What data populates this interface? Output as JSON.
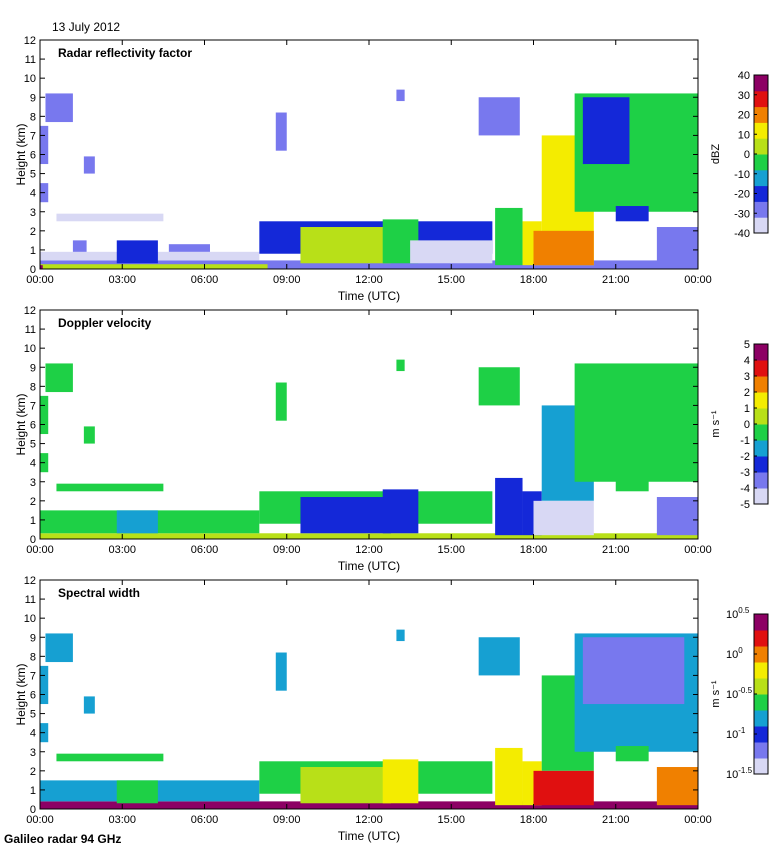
{
  "header": {
    "date": "13 July 2012"
  },
  "footer": {
    "instrument": "Galileo radar 94 GHz"
  },
  "colors": {
    "scale": [
      "#d8d8f4",
      "#7878ee",
      "#1428d8",
      "#16a0d2",
      "#1ed046",
      "#b8e018",
      "#f4ec00",
      "#f08000",
      "#e01010",
      "#8c0064"
    ]
  },
  "chart_data": [
    {
      "type": "heatmap",
      "title": "Radar reflectivity factor",
      "xlabel": "Time (UTC)",
      "ylabel": "Height (km)",
      "xticks": [
        "00:00",
        "03:00",
        "06:00",
        "09:00",
        "12:00",
        "15:00",
        "18:00",
        "21:00",
        "00:00"
      ],
      "xlim_hours": [
        0,
        24
      ],
      "yticks": [
        "0",
        "1",
        "2",
        "3",
        "4",
        "5",
        "6",
        "7",
        "8",
        "9",
        "10",
        "11",
        "12"
      ],
      "ylim_km": [
        0,
        12
      ],
      "colorbar": {
        "label": "dBZ",
        "ticks": [
          "40",
          "30",
          "20",
          "10",
          "0",
          "-10",
          "-20",
          "-30",
          "-40"
        ],
        "range": [
          -40,
          40
        ]
      },
      "regions": [
        {
          "t": [
            0.0,
            24.0
          ],
          "h": [
            0.0,
            0.45
          ],
          "v": -28
        },
        {
          "t": [
            0.0,
            8.0
          ],
          "h": [
            0.45,
            0.9
          ],
          "v": -35
        },
        {
          "t": [
            0.0,
            8.3
          ],
          "h": [
            0.0,
            0.25
          ],
          "v": 5
        },
        {
          "t": [
            0.0,
            0.1
          ],
          "h": [
            0.0,
            0.2
          ],
          "v": 35
        },
        {
          "t": [
            0.2,
            1.2
          ],
          "h": [
            7.7,
            9.2
          ],
          "v": -25
        },
        {
          "t": [
            0.0,
            0.3
          ],
          "h": [
            5.5,
            7.5
          ],
          "v": -25
        },
        {
          "t": [
            0.0,
            0.3
          ],
          "h": [
            3.5,
            4.5
          ],
          "v": -25
        },
        {
          "t": [
            1.6,
            2.0
          ],
          "h": [
            5.0,
            5.9
          ],
          "v": -25
        },
        {
          "t": [
            0.6,
            4.5
          ],
          "h": [
            2.5,
            2.9
          ],
          "v": -38
        },
        {
          "t": [
            1.2,
            1.7
          ],
          "h": [
            0.9,
            1.5
          ],
          "v": -25
        },
        {
          "t": [
            2.8,
            4.3
          ],
          "h": [
            0.3,
            1.5
          ],
          "v": -24
        },
        {
          "t": [
            4.7,
            6.2
          ],
          "h": [
            0.9,
            1.3
          ],
          "v": -25
        },
        {
          "t": [
            8.6,
            9.0
          ],
          "h": [
            6.2,
            8.2
          ],
          "v": -25
        },
        {
          "t": [
            8.0,
            16.5
          ],
          "h": [
            0.8,
            2.5
          ],
          "v": -24
        },
        {
          "t": [
            9.5,
            12.8
          ],
          "h": [
            0.3,
            2.2
          ],
          "v": 5
        },
        {
          "t": [
            12.5,
            13.8
          ],
          "h": [
            0.3,
            2.6
          ],
          "v": -5
        },
        {
          "t": [
            13.5,
            16.5
          ],
          "h": [
            0.3,
            1.5
          ],
          "v": -36
        },
        {
          "t": [
            13.0,
            13.3
          ],
          "h": [
            8.8,
            9.4
          ],
          "v": -25
        },
        {
          "t": [
            16.0,
            17.5
          ],
          "h": [
            7.0,
            9.0
          ],
          "v": -25
        },
        {
          "t": [
            16.6,
            17.6
          ],
          "h": [
            0.2,
            3.2
          ],
          "v": -2
        },
        {
          "t": [
            17.6,
            18.3
          ],
          "h": [
            0.2,
            2.5
          ],
          "v": 12
        },
        {
          "t": [
            18.3,
            20.2
          ],
          "h": [
            0.2,
            7.0
          ],
          "v": 8
        },
        {
          "t": [
            18.0,
            20.2
          ],
          "h": [
            0.2,
            2.0
          ],
          "v": 22
        },
        {
          "t": [
            19.5,
            24.0
          ],
          "h": [
            3.0,
            9.2
          ],
          "v": -7
        },
        {
          "t": [
            19.8,
            21.5
          ],
          "h": [
            5.5,
            9.0
          ],
          "v": -20
        },
        {
          "t": [
            21.0,
            22.2
          ],
          "h": [
            2.5,
            3.3
          ],
          "v": -22
        },
        {
          "t": [
            22.5,
            24.0
          ],
          "h": [
            0.2,
            2.2
          ],
          "v": -26
        }
      ]
    },
    {
      "type": "heatmap",
      "title": "Doppler velocity",
      "xlabel": "Time (UTC)",
      "ylabel": "Height (km)",
      "xticks": [
        "00:00",
        "03:00",
        "06:00",
        "09:00",
        "12:00",
        "15:00",
        "18:00",
        "21:00",
        "00:00"
      ],
      "xlim_hours": [
        0,
        24
      ],
      "yticks": [
        "0",
        "1",
        "2",
        "3",
        "4",
        "5",
        "6",
        "7",
        "8",
        "9",
        "10",
        "11",
        "12"
      ],
      "ylim_km": [
        0,
        12
      ],
      "colorbar": {
        "label": "m s⁻¹",
        "ticks": [
          "5",
          "4",
          "3",
          "2",
          "1",
          "0",
          "-1",
          "-2",
          "-3",
          "-4",
          "-5"
        ],
        "range": [
          -5,
          5
        ]
      },
      "regions": [
        {
          "t": [
            0.0,
            24.0
          ],
          "h": [
            0.0,
            0.3
          ],
          "v": 0.5
        },
        {
          "t": [
            0.0,
            8.0
          ],
          "h": [
            0.3,
            1.5
          ],
          "v": -1
        },
        {
          "t": [
            0.2,
            1.2
          ],
          "h": [
            7.7,
            9.2
          ],
          "v": -1
        },
        {
          "t": [
            0.0,
            0.3
          ],
          "h": [
            5.5,
            7.5
          ],
          "v": -1
        },
        {
          "t": [
            0.0,
            0.3
          ],
          "h": [
            3.5,
            4.5
          ],
          "v": -1
        },
        {
          "t": [
            1.6,
            2.0
          ],
          "h": [
            5.0,
            5.9
          ],
          "v": -1
        },
        {
          "t": [
            0.6,
            4.5
          ],
          "h": [
            2.5,
            2.9
          ],
          "v": -1
        },
        {
          "t": [
            2.8,
            4.3
          ],
          "h": [
            0.3,
            1.5
          ],
          "v": -2
        },
        {
          "t": [
            8.6,
            9.0
          ],
          "h": [
            6.2,
            8.2
          ],
          "v": -1
        },
        {
          "t": [
            8.0,
            16.5
          ],
          "h": [
            0.8,
            2.5
          ],
          "v": -1
        },
        {
          "t": [
            9.5,
            12.8
          ],
          "h": [
            0.3,
            2.2
          ],
          "v": -2.5
        },
        {
          "t": [
            12.5,
            13.8
          ],
          "h": [
            0.3,
            2.6
          ],
          "v": -3
        },
        {
          "t": [
            13.0,
            13.3
          ],
          "h": [
            8.8,
            9.4
          ],
          "v": -1
        },
        {
          "t": [
            16.0,
            17.5
          ],
          "h": [
            7.0,
            9.0
          ],
          "v": -1
        },
        {
          "t": [
            16.6,
            17.6
          ],
          "h": [
            0.2,
            3.2
          ],
          "v": -2.5
        },
        {
          "t": [
            17.6,
            18.3
          ],
          "h": [
            0.2,
            2.5
          ],
          "v": -3
        },
        {
          "t": [
            18.3,
            20.2
          ],
          "h": [
            2.0,
            7.0
          ],
          "v": -1.5
        },
        {
          "t": [
            18.0,
            20.2
          ],
          "h": [
            0.2,
            2.0
          ],
          "v": -4.5
        },
        {
          "t": [
            19.5,
            24.0
          ],
          "h": [
            3.0,
            9.2
          ],
          "v": -1
        },
        {
          "t": [
            21.0,
            22.2
          ],
          "h": [
            2.5,
            3.3
          ],
          "v": -1
        },
        {
          "t": [
            22.5,
            24.0
          ],
          "h": [
            0.2,
            2.2
          ],
          "v": -3.5
        }
      ]
    },
    {
      "type": "heatmap",
      "title": "Spectral width",
      "xlabel": "Time (UTC)",
      "ylabel": "Height (km)",
      "xticks": [
        "00:00",
        "03:00",
        "06:00",
        "09:00",
        "12:00",
        "15:00",
        "18:00",
        "21:00",
        "00:00"
      ],
      "xlim_hours": [
        0,
        24
      ],
      "yticks": [
        "0",
        "1",
        "2",
        "3",
        "4",
        "5",
        "6",
        "7",
        "8",
        "9",
        "10",
        "11",
        "12"
      ],
      "ylim_km": [
        0,
        12
      ],
      "colorbar": {
        "label": "m s⁻¹",
        "ticks": [
          "10^0.5",
          "10^0",
          "10^-0.5",
          "10^-1",
          "10^-1.5"
        ],
        "range": [
          -1.5,
          0.5
        ]
      },
      "regions": [
        {
          "t": [
            0.0,
            24.0
          ],
          "h": [
            0.0,
            0.4
          ],
          "v": 0.45
        },
        {
          "t": [
            0.0,
            8.0
          ],
          "h": [
            0.4,
            1.5
          ],
          "v": -0.8
        },
        {
          "t": [
            0.2,
            1.2
          ],
          "h": [
            7.7,
            9.2
          ],
          "v": -0.9
        },
        {
          "t": [
            0.0,
            0.3
          ],
          "h": [
            5.5,
            7.5
          ],
          "v": -0.9
        },
        {
          "t": [
            0.0,
            0.3
          ],
          "h": [
            3.5,
            4.5
          ],
          "v": -0.9
        },
        {
          "t": [
            1.6,
            2.0
          ],
          "h": [
            5.0,
            5.9
          ],
          "v": -0.8
        },
        {
          "t": [
            0.6,
            4.5
          ],
          "h": [
            2.5,
            2.9
          ],
          "v": -0.7
        },
        {
          "t": [
            2.8,
            4.3
          ],
          "h": [
            0.3,
            1.5
          ],
          "v": -0.6
        },
        {
          "t": [
            8.6,
            9.0
          ],
          "h": [
            6.2,
            8.2
          ],
          "v": -0.9
        },
        {
          "t": [
            8.0,
            16.5
          ],
          "h": [
            0.8,
            2.5
          ],
          "v": -0.55
        },
        {
          "t": [
            9.5,
            12.8
          ],
          "h": [
            0.3,
            2.2
          ],
          "v": -0.4
        },
        {
          "t": [
            12.5,
            13.8
          ],
          "h": [
            0.3,
            2.6
          ],
          "v": -0.3
        },
        {
          "t": [
            13.0,
            13.3
          ],
          "h": [
            8.8,
            9.4
          ],
          "v": -0.8
        },
        {
          "t": [
            16.0,
            17.5
          ],
          "h": [
            7.0,
            9.0
          ],
          "v": -0.8
        },
        {
          "t": [
            16.6,
            17.6
          ],
          "h": [
            0.2,
            3.2
          ],
          "v": -0.3
        },
        {
          "t": [
            17.6,
            18.3
          ],
          "h": [
            0.2,
            2.5
          ],
          "v": -0.2
        },
        {
          "t": [
            18.3,
            20.2
          ],
          "h": [
            2.0,
            7.0
          ],
          "v": -0.55
        },
        {
          "t": [
            18.0,
            20.2
          ],
          "h": [
            0.2,
            2.0
          ],
          "v": 0.1
        },
        {
          "t": [
            19.5,
            24.0
          ],
          "h": [
            3.0,
            9.2
          ],
          "v": -0.75
        },
        {
          "t": [
            19.8,
            23.5
          ],
          "h": [
            5.5,
            9.0
          ],
          "v": -1.1
        },
        {
          "t": [
            21.0,
            22.2
          ],
          "h": [
            2.5,
            3.3
          ],
          "v": -0.7
        },
        {
          "t": [
            22.5,
            24.0
          ],
          "h": [
            0.2,
            2.2
          ],
          "v": -0.1
        }
      ]
    }
  ]
}
